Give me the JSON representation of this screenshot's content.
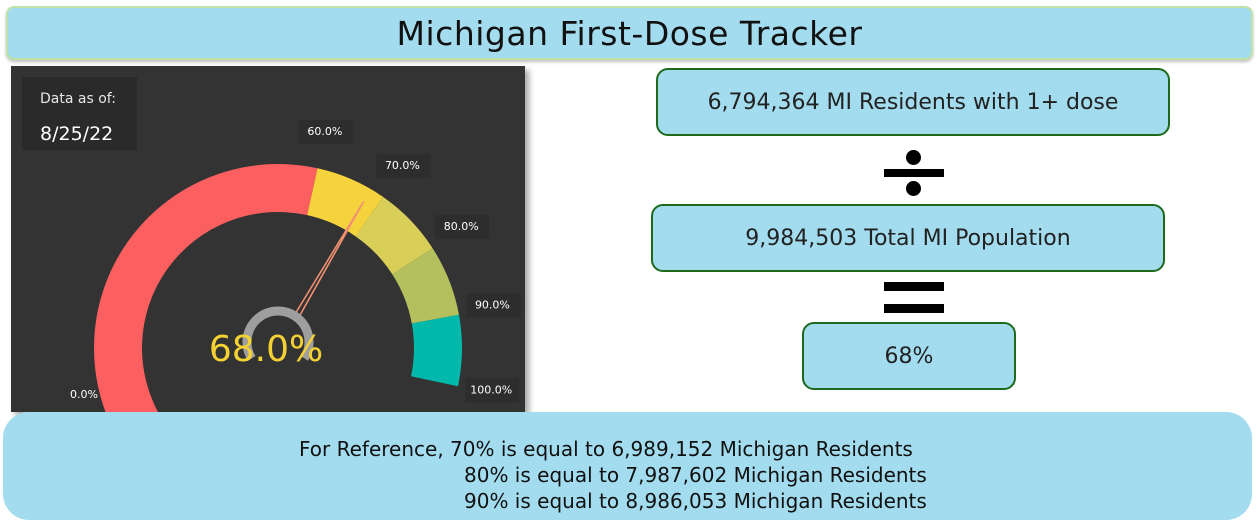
{
  "title": "Michigan First-Dose Tracker",
  "date_card": {
    "label": "Data as of:",
    "value": "8/25/22"
  },
  "formula": {
    "numerator": "6,794,364 MI Residents with 1+ dose",
    "denominator": "9,984,503 Total MI Population",
    "result": "68%",
    "divide_icon": "divide-icon",
    "equals_icon": "equals-icon"
  },
  "reference": {
    "line1": "For Reference, 70% is equal to 6,989,152 Michigan Residents",
    "line2": "80% is equal to 7,987,602 Michigan Residents",
    "line3": "90% is equal to 8,986,053 Michigan Residents"
  },
  "colors": {
    "panel_bg": "#333333",
    "box_bg": "#a2dcee",
    "box_border": "#1d6a1d",
    "value_text": "#f5d233"
  },
  "chart_data": {
    "type": "gauge",
    "value": 68.0,
    "value_label": "68.0%",
    "range": [
      0,
      100
    ],
    "bands": [
      {
        "from": 0,
        "to": 60,
        "color": "#fc5f5f"
      },
      {
        "from": 60,
        "to": 70,
        "color": "#f5d33c"
      },
      {
        "from": 70,
        "to": 80,
        "color": "#d9cf58"
      },
      {
        "from": 80,
        "to": 90,
        "color": "#b4c05e"
      },
      {
        "from": 90,
        "to": 100,
        "color": "#02b8aa"
      }
    ],
    "tick_labels": [
      {
        "value": 0,
        "label": "0.0%"
      },
      {
        "value": 60,
        "label": "60.0%"
      },
      {
        "value": 70,
        "label": "70.0%"
      },
      {
        "value": 80,
        "label": "80.0%"
      },
      {
        "value": 90,
        "label": "90.0%"
      },
      {
        "value": 100,
        "label": "100.0%"
      }
    ]
  }
}
